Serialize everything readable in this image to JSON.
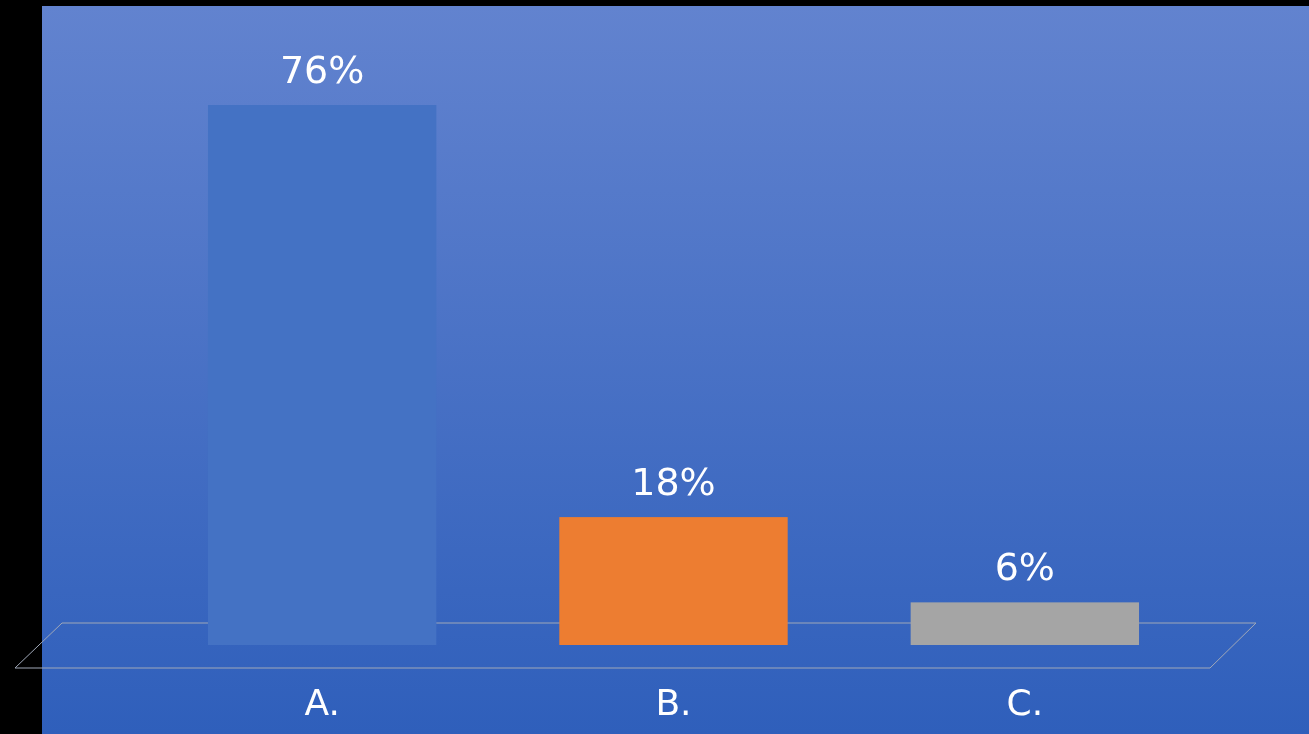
{
  "chart_data": {
    "type": "bar",
    "categories": [
      "A.",
      "B.",
      "C."
    ],
    "values": [
      76,
      18,
      6
    ],
    "colors": [
      "#4472c4",
      "#ed7d31",
      "#a5a5a5"
    ],
    "value_labels": [
      "76%",
      "18%",
      "6%"
    ]
  }
}
